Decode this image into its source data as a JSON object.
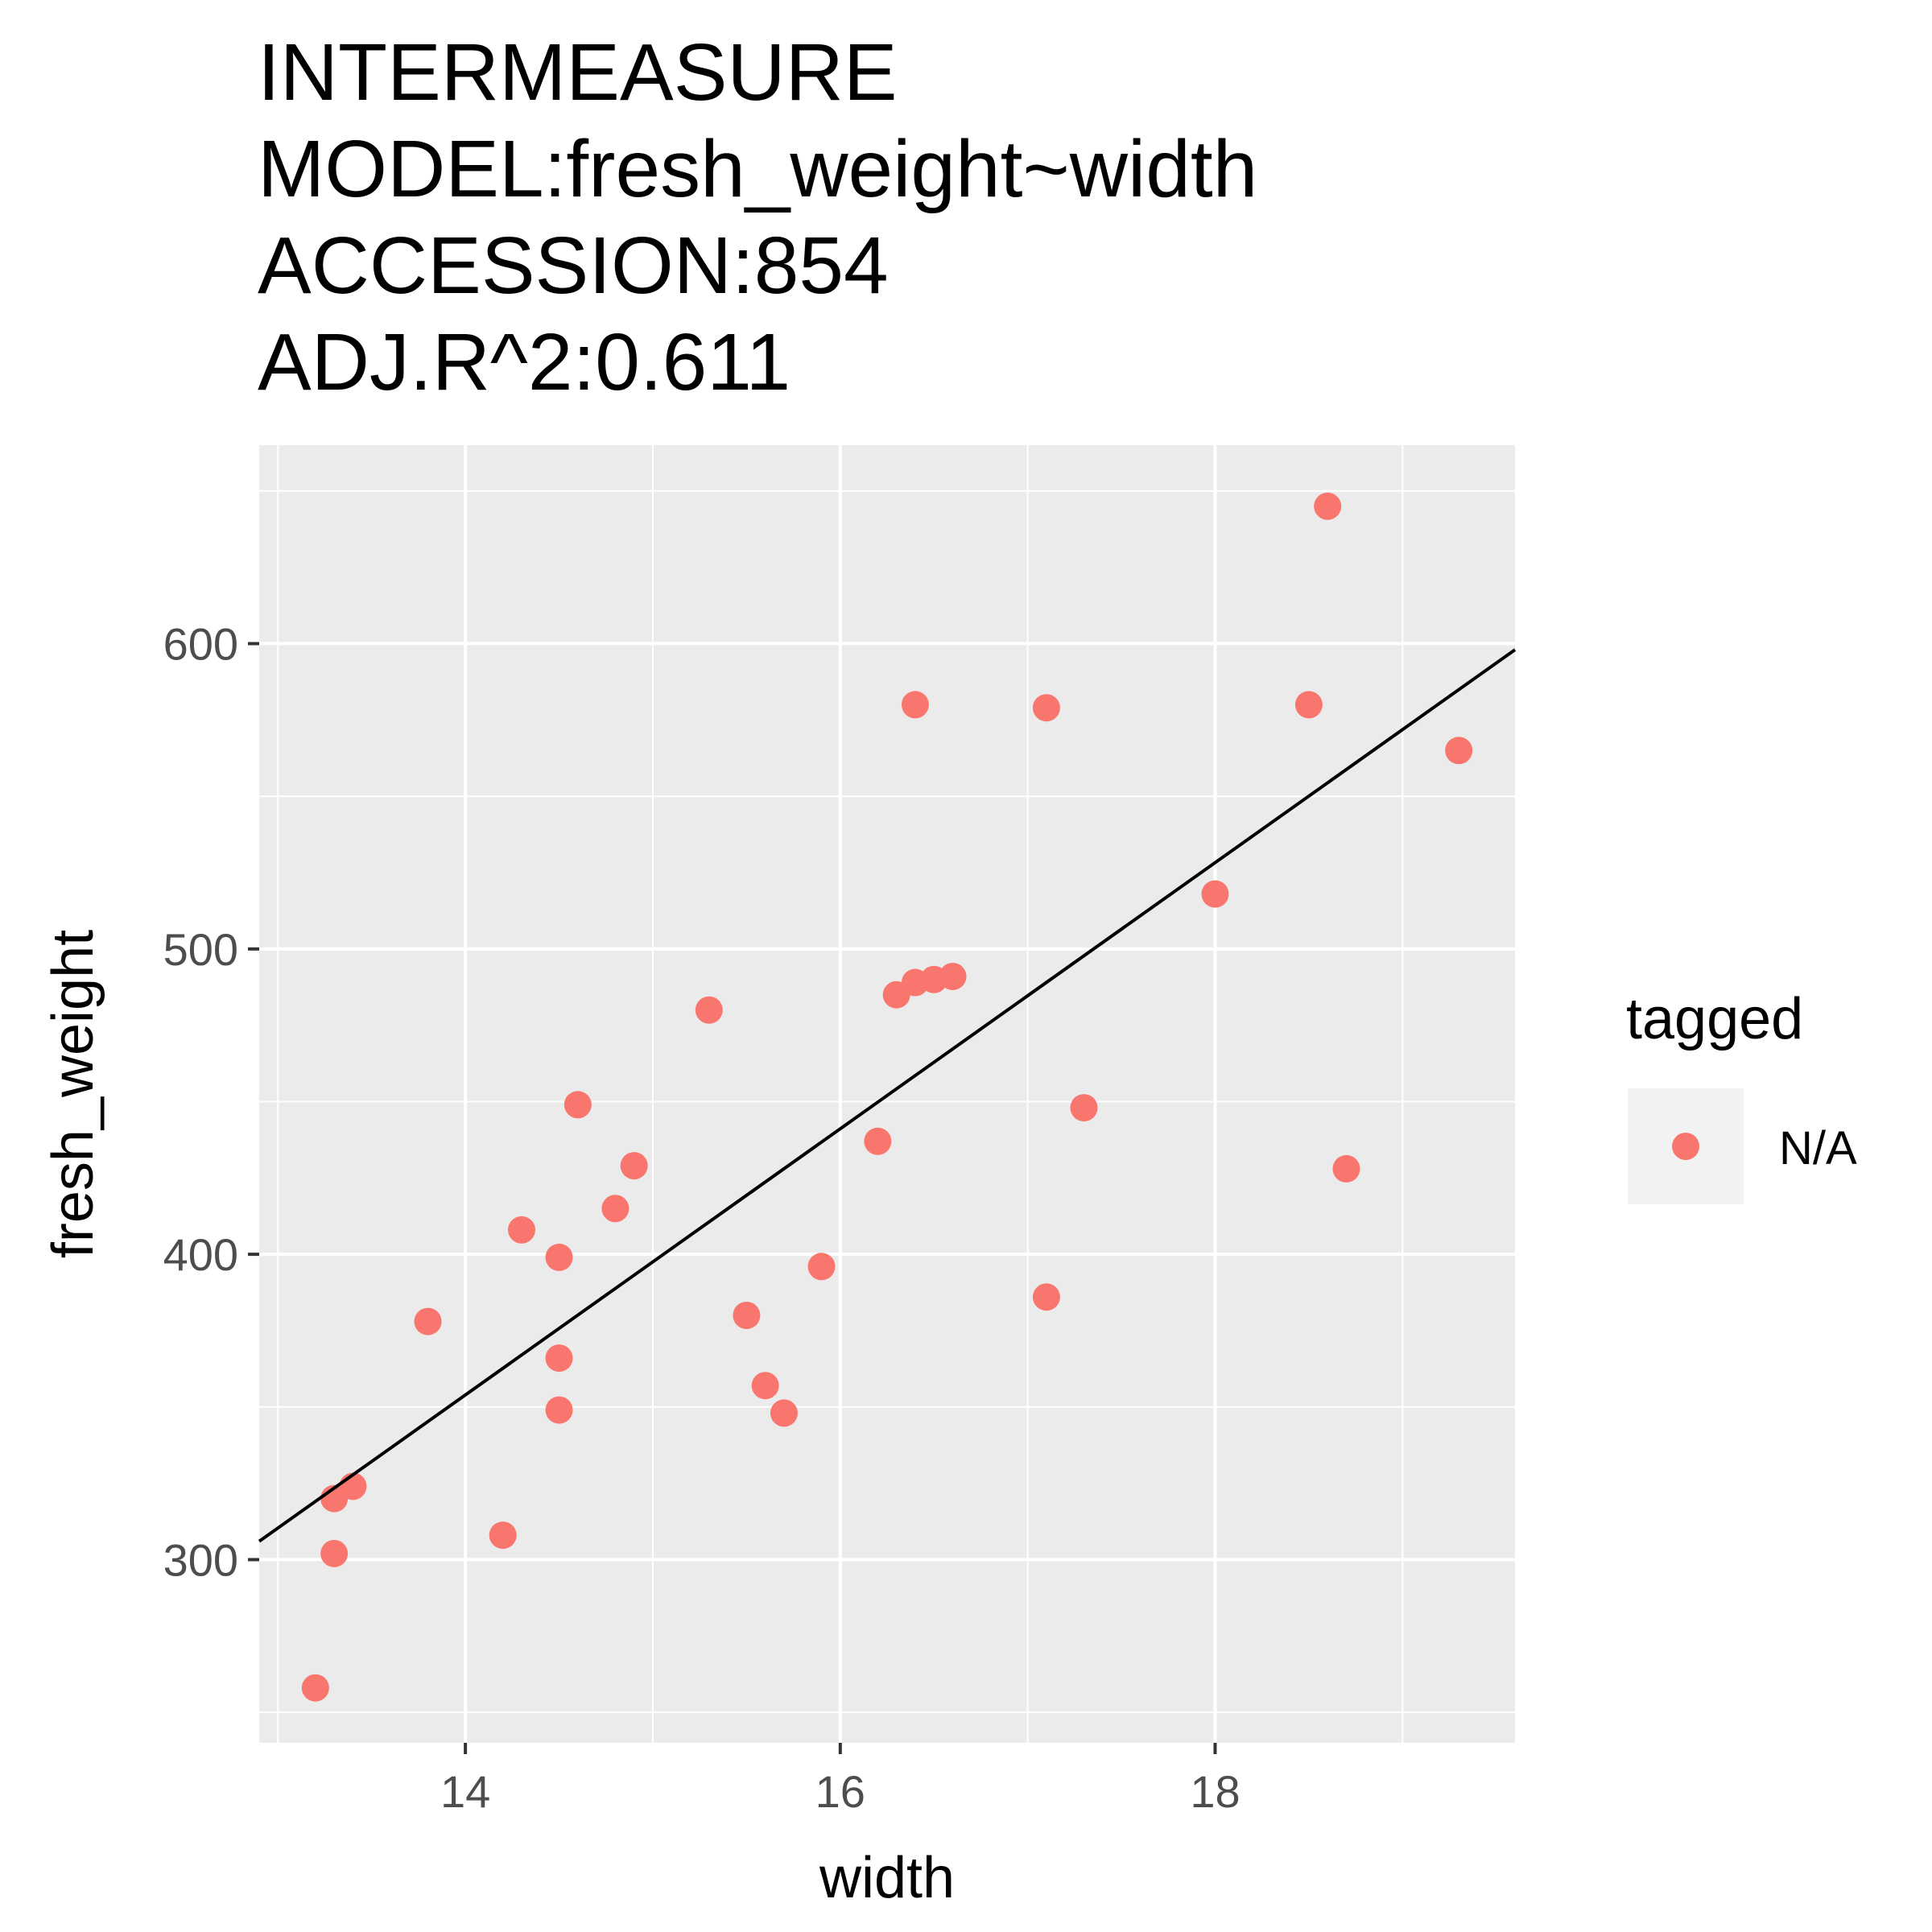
{
  "chart_data": {
    "type": "scatter",
    "title": [
      "INTERMEASURE",
      "MODEL:fresh_weight~width",
      "ACCESSION:854",
      "ADJ.R^2:0.611"
    ],
    "xlabel": "width",
    "ylabel": "fresh_weight",
    "xlim": [
      12.9,
      19.6
    ],
    "ylim": [
      240,
      665
    ],
    "x_ticks": [
      14,
      16,
      18
    ],
    "y_ticks": [
      300,
      400,
      500,
      600
    ],
    "grid": true,
    "background": "#ebebeb",
    "point_color": "#f8766d",
    "line_color": "#000000",
    "legend": {
      "title": "tagged",
      "position": "right",
      "entries": [
        "N/A"
      ]
    },
    "fit_line": {
      "x": [
        12.9,
        19.6
      ],
      "y": [
        306,
        598
      ]
    },
    "series": [
      {
        "name": "N/A",
        "points": [
          [
            13.2,
            258
          ],
          [
            13.3,
            302
          ],
          [
            13.3,
            320
          ],
          [
            13.4,
            324
          ],
          [
            13.8,
            378
          ],
          [
            14.2,
            308
          ],
          [
            14.3,
            408
          ],
          [
            14.5,
            399
          ],
          [
            14.5,
            366
          ],
          [
            14.5,
            349
          ],
          [
            14.6,
            449
          ],
          [
            14.8,
            415
          ],
          [
            14.9,
            429
          ],
          [
            15.3,
            480
          ],
          [
            15.5,
            380
          ],
          [
            15.6,
            357
          ],
          [
            15.7,
            348
          ],
          [
            15.9,
            396
          ],
          [
            16.2,
            437
          ],
          [
            16.3,
            485
          ],
          [
            16.4,
            489
          ],
          [
            16.5,
            490
          ],
          [
            16.6,
            491
          ],
          [
            16.4,
            580
          ],
          [
            17.1,
            579
          ],
          [
            17.1,
            386
          ],
          [
            17.3,
            448
          ],
          [
            18.0,
            518
          ],
          [
            18.5,
            580
          ],
          [
            18.6,
            645
          ],
          [
            18.7,
            428
          ],
          [
            19.3,
            565
          ]
        ]
      }
    ]
  }
}
